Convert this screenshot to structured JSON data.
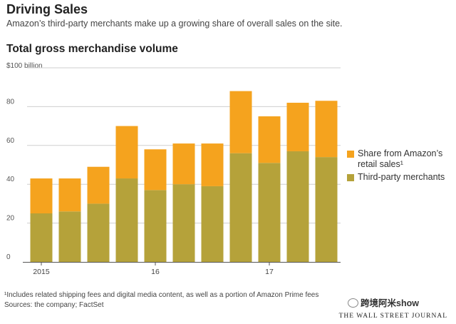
{
  "header": {
    "title": "Driving Sales",
    "subtitle": "Amazon’s third-party merchants make up a growing share of overall sales on the site."
  },
  "chart_data": {
    "type": "bar",
    "stacked": true,
    "title": "Total gross merchandise volume",
    "unit_label": "$100 billion",
    "ylim": [
      0,
      100
    ],
    "yticks": [
      0,
      20,
      40,
      60,
      80
    ],
    "grid": true,
    "x_labels": [
      "2015",
      "16",
      "17"
    ],
    "x_label_positions": [
      0,
      4,
      8
    ],
    "x_label_bar_index_note": "",
    "series": [
      {
        "name": "Third-party merchants",
        "color": "#b5a23a",
        "values": [
          25,
          26,
          30,
          43,
          37,
          40,
          39,
          56,
          51,
          57,
          54
        ]
      },
      {
        "name": "Share from Amazon’s retail sales¹",
        "color": "#f5a31e",
        "values": [
          18,
          17,
          19,
          27,
          21,
          21,
          22,
          32,
          24,
          25,
          29
        ]
      }
    ],
    "legend": {
      "position": "right",
      "entries": [
        "Share from Amazon’s retail sales¹",
        "Third-party merchants"
      ]
    }
  },
  "footer": {
    "footnote": "¹Includes related shipping fees and digital media content, as well as a portion of Amazon Prime fees",
    "sources": "Sources: the company; FactSet",
    "publisher": "THE WALL STREET JOURNAL",
    "watermark": "跨境阿米show"
  }
}
